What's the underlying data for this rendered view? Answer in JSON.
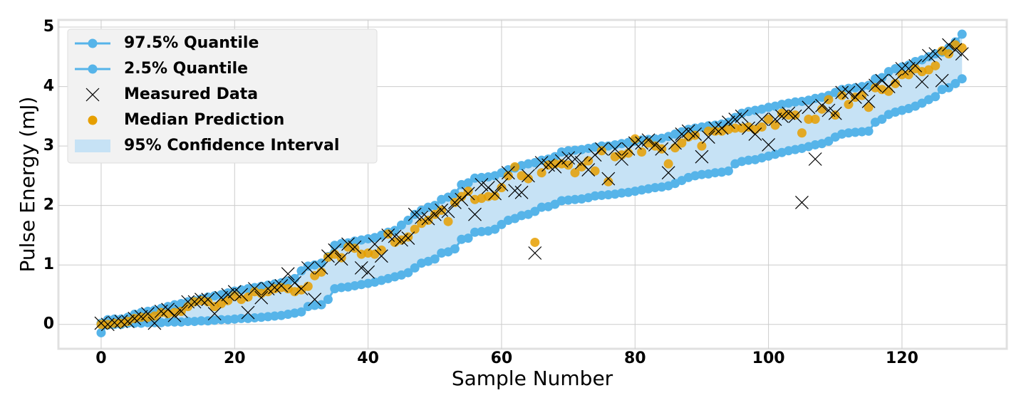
{
  "chart_data": {
    "type": "quantile-band",
    "xlabel": "Sample Number",
    "ylabel": "Pulse Energy (mJ)",
    "xlim": [
      -6.4,
      135.7
    ],
    "ylim": [
      -0.41,
      5.12
    ],
    "xticks": [
      0,
      20,
      40,
      60,
      80,
      100,
      120
    ],
    "yticks": [
      0,
      1,
      2,
      3,
      4,
      5
    ],
    "grid": true,
    "legend": "upper left",
    "x": [
      0,
      1,
      2,
      3,
      4,
      5,
      6,
      7,
      8,
      9,
      10,
      11,
      12,
      13,
      14,
      15,
      16,
      17,
      18,
      19,
      20,
      21,
      22,
      23,
      24,
      25,
      26,
      27,
      28,
      29,
      30,
      31,
      32,
      33,
      34,
      35,
      36,
      37,
      38,
      39,
      40,
      41,
      42,
      43,
      44,
      45,
      46,
      47,
      48,
      49,
      50,
      51,
      52,
      53,
      54,
      55,
      56,
      57,
      58,
      59,
      60,
      61,
      62,
      63,
      64,
      65,
      66,
      67,
      68,
      69,
      70,
      71,
      72,
      73,
      74,
      75,
      76,
      77,
      78,
      79,
      80,
      81,
      82,
      83,
      84,
      85,
      86,
      87,
      88,
      89,
      90,
      91,
      92,
      93,
      94,
      95,
      96,
      97,
      98,
      99,
      100,
      101,
      102,
      103,
      104,
      105,
      106,
      107,
      108,
      109,
      110,
      111,
      112,
      113,
      114,
      115,
      116,
      117,
      118,
      119,
      120,
      121,
      122,
      123,
      124,
      125,
      126,
      127,
      128,
      129
    ],
    "series": [
      {
        "name": "97.5% Quantile",
        "color": "#56b4e9",
        "marker": "o",
        "line": true,
        "values": [
          0.02,
          0.08,
          0.09,
          0.09,
          0.12,
          0.17,
          0.2,
          0.22,
          0.24,
          0.27,
          0.3,
          0.33,
          0.35,
          0.38,
          0.4,
          0.43,
          0.46,
          0.48,
          0.5,
          0.53,
          0.56,
          0.58,
          0.6,
          0.62,
          0.64,
          0.66,
          0.68,
          0.7,
          0.73,
          0.77,
          0.9,
          0.98,
          1.0,
          1.03,
          1.14,
          1.33,
          1.36,
          1.37,
          1.4,
          1.42,
          1.44,
          1.46,
          1.5,
          1.55,
          1.58,
          1.67,
          1.75,
          1.85,
          1.92,
          1.97,
          2.0,
          2.1,
          2.14,
          2.2,
          2.35,
          2.38,
          2.46,
          2.47,
          2.48,
          2.5,
          2.55,
          2.6,
          2.63,
          2.67,
          2.7,
          2.72,
          2.76,
          2.78,
          2.82,
          2.9,
          2.92,
          2.93,
          2.94,
          2.96,
          2.98,
          3.0,
          3.0,
          3.02,
          3.04,
          3.06,
          3.08,
          3.1,
          3.11,
          3.12,
          3.13,
          3.16,
          3.2,
          3.24,
          3.28,
          3.3,
          3.32,
          3.34,
          3.35,
          3.37,
          3.4,
          3.48,
          3.55,
          3.58,
          3.6,
          3.62,
          3.65,
          3.67,
          3.7,
          3.72,
          3.74,
          3.75,
          3.77,
          3.8,
          3.82,
          3.85,
          3.9,
          3.95,
          3.97,
          3.98,
          4.0,
          4.02,
          4.13,
          4.15,
          4.25,
          4.3,
          4.33,
          4.36,
          4.42,
          4.45,
          4.5,
          4.55,
          4.58,
          4.65,
          4.75,
          4.88
        ]
      },
      {
        "name": "2.5% Quantile",
        "color": "#56b4e9",
        "marker": "o",
        "line": true,
        "values": [
          -0.14,
          -0.01,
          0,
          0,
          0.02,
          0.02,
          0.02,
          0.03,
          0.03,
          0.03,
          0.04,
          0.04,
          0.04,
          0.05,
          0.05,
          0.06,
          0.06,
          0.07,
          0.08,
          0.08,
          0.09,
          0.1,
          0.1,
          0.11,
          0.12,
          0.13,
          0.14,
          0.15,
          0.17,
          0.19,
          0.21,
          0.3,
          0.32,
          0.33,
          0.42,
          0.6,
          0.62,
          0.63,
          0.65,
          0.67,
          0.69,
          0.71,
          0.74,
          0.77,
          0.8,
          0.83,
          0.87,
          0.95,
          1.03,
          1.06,
          1.1,
          1.2,
          1.22,
          1.27,
          1.43,
          1.45,
          1.55,
          1.56,
          1.57,
          1.6,
          1.68,
          1.75,
          1.78,
          1.83,
          1.85,
          1.9,
          1.97,
          1.98,
          2.02,
          2.08,
          2.09,
          2.1,
          2.11,
          2.13,
          2.16,
          2.17,
          2.18,
          2.19,
          2.21,
          2.22,
          2.24,
          2.26,
          2.28,
          2.3,
          2.31,
          2.33,
          2.37,
          2.42,
          2.47,
          2.5,
          2.52,
          2.53,
          2.55,
          2.56,
          2.58,
          2.7,
          2.74,
          2.76,
          2.77,
          2.8,
          2.83,
          2.86,
          2.89,
          2.92,
          2.94,
          2.96,
          2.99,
          3.02,
          3.04,
          3.08,
          3.15,
          3.2,
          3.22,
          3.23,
          3.24,
          3.25,
          3.4,
          3.45,
          3.53,
          3.57,
          3.6,
          3.63,
          3.67,
          3.72,
          3.78,
          3.83,
          3.95,
          3.98,
          4.05,
          4.13
        ]
      },
      {
        "name": "Measured Data",
        "color": "#000000",
        "marker": "x",
        "line": false,
        "values": [
          0.02,
          0,
          0.03,
          0.05,
          0.05,
          0.1,
          0.13,
          0.18,
          0.02,
          0.22,
          0.25,
          0.15,
          0.22,
          0.38,
          0.38,
          0.42,
          0.42,
          0.18,
          0.45,
          0.5,
          0.55,
          0.5,
          0.2,
          0.6,
          0.45,
          0.6,
          0.62,
          0.65,
          0.85,
          0.7,
          0.6,
          0.95,
          0.42,
          0.95,
          1.15,
          1.25,
          1.1,
          1.35,
          1.3,
          0.95,
          0.88,
          1.35,
          1.15,
          1.5,
          1.48,
          1.42,
          1.45,
          1.85,
          1.8,
          1.78,
          1.85,
          1.92,
          1.9,
          2.05,
          2.1,
          2.2,
          1.85,
          2.35,
          2.3,
          2.2,
          2.35,
          2.55,
          2.25,
          2.22,
          2.5,
          1.2,
          2.72,
          2.68,
          2.65,
          2.75,
          2.8,
          2.78,
          2.72,
          2.6,
          2.85,
          2.95,
          2.45,
          2.95,
          2.78,
          2.95,
          3.05,
          3.05,
          3.1,
          3.02,
          2.95,
          2.55,
          3.05,
          3.2,
          3.25,
          3.2,
          2.82,
          3.15,
          3.3,
          3.3,
          3.4,
          3.45,
          3.5,
          3.3,
          3.2,
          3.45,
          3.02,
          3.45,
          3.5,
          3.55,
          3.5,
          2.05,
          3.65,
          2.78,
          3.68,
          3.6,
          3.55,
          3.9,
          3.9,
          3.82,
          3.95,
          3.75,
          4.02,
          4.1,
          4.0,
          4.1,
          4.3,
          4.3,
          4.35,
          4.08,
          4.52,
          4.55,
          4.1,
          4.7,
          4.62,
          4.55
        ]
      },
      {
        "name": "Median Prediction",
        "color": "#e69f00",
        "marker": "o",
        "line": false,
        "values": [
          0,
          0,
          0.02,
          0.02,
          0.05,
          0.1,
          0.12,
          0.12,
          0.14,
          0.2,
          0.18,
          0.2,
          0.22,
          0.3,
          0.38,
          0.4,
          0.38,
          0.3,
          0.35,
          0.4,
          0.48,
          0.42,
          0.46,
          0.55,
          0.52,
          0.55,
          0.6,
          0.62,
          0.6,
          0.55,
          0.58,
          0.64,
          0.82,
          0.88,
          1.13,
          1.18,
          1.12,
          1.3,
          1.28,
          1.18,
          1.2,
          1.18,
          1.25,
          1.52,
          1.38,
          1.42,
          1.47,
          1.6,
          1.7,
          1.75,
          1.85,
          1.92,
          1.73,
          2.05,
          2.15,
          2.24,
          2.1,
          2.12,
          2.15,
          2.16,
          2.3,
          2.5,
          2.65,
          2.5,
          2.45,
          1.38,
          2.55,
          2.68,
          2.7,
          2.7,
          2.68,
          2.55,
          2.65,
          2.75,
          2.58,
          2.92,
          2.4,
          2.82,
          2.85,
          2.88,
          3.12,
          2.9,
          3.05,
          3.0,
          2.95,
          2.7,
          2.97,
          3.05,
          3.15,
          3.18,
          3.0,
          3.25,
          3.25,
          3.25,
          3.28,
          3.3,
          3.3,
          3.32,
          3.28,
          3.32,
          3.45,
          3.35,
          3.55,
          3.52,
          3.52,
          3.22,
          3.45,
          3.45,
          3.62,
          3.78,
          3.52,
          3.85,
          3.7,
          3.82,
          3.85,
          3.65,
          3.98,
          3.95,
          3.92,
          4.05,
          4.2,
          4.2,
          4.3,
          4.25,
          4.28,
          4.35,
          4.6,
          4.55,
          4.7,
          4.65
        ]
      }
    ],
    "interval": {
      "name": "95% Confidence Interval",
      "color": "#c6e2f5"
    }
  }
}
